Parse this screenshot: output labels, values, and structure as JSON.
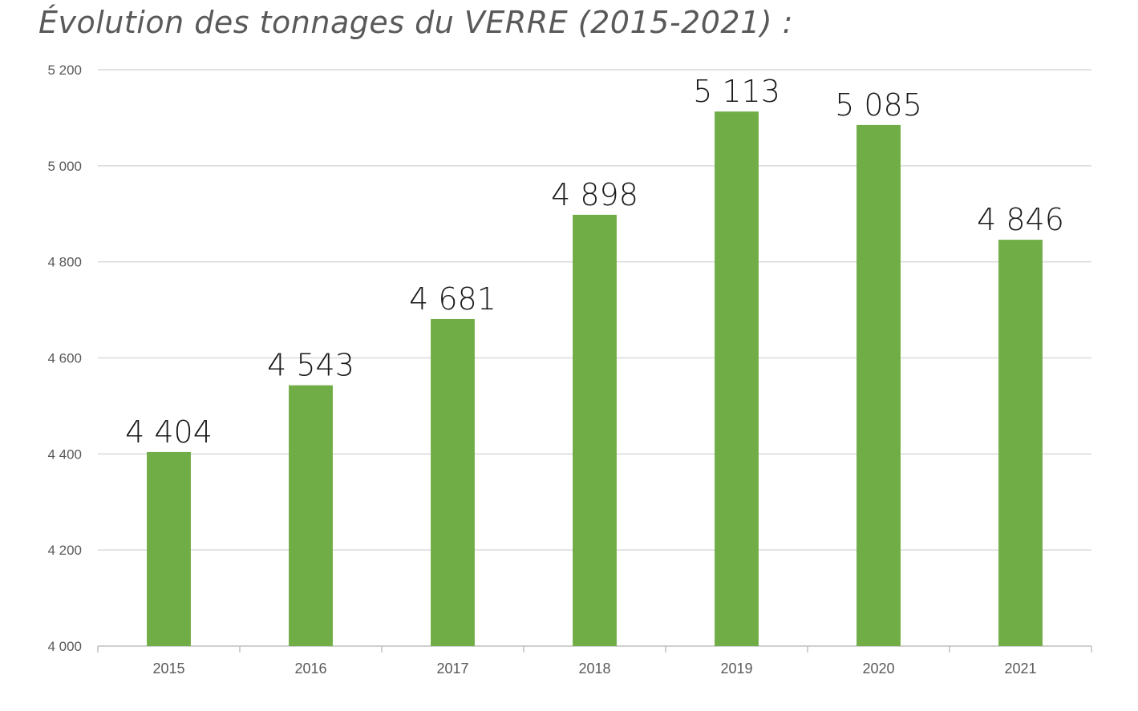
{
  "chart_data": {
    "type": "bar",
    "title": "Évolution des tonnages du VERRE (2015-2021) :",
    "xlabel": "",
    "ylabel": "",
    "categories": [
      "2015",
      "2016",
      "2017",
      "2018",
      "2019",
      "2020",
      "2021"
    ],
    "values": [
      4404,
      4543,
      4681,
      4898,
      5113,
      5085,
      4846
    ],
    "value_labels": [
      "4 404",
      "4 543",
      "4 681",
      "4 898",
      "5 113",
      "5 085",
      "4 846"
    ],
    "ylim": [
      4000,
      5200
    ],
    "yticks": [
      4000,
      4200,
      4400,
      4600,
      4800,
      5000,
      5200
    ],
    "ytick_labels": [
      "4 000",
      "4 200",
      "4 400",
      "4 600",
      "4 800",
      "5 000",
      "5 200"
    ],
    "grid": true,
    "legend": "none",
    "colors": {
      "bar": "#70AD47",
      "grid": "#D9D9D9",
      "axis": "#BFBFBF"
    }
  }
}
